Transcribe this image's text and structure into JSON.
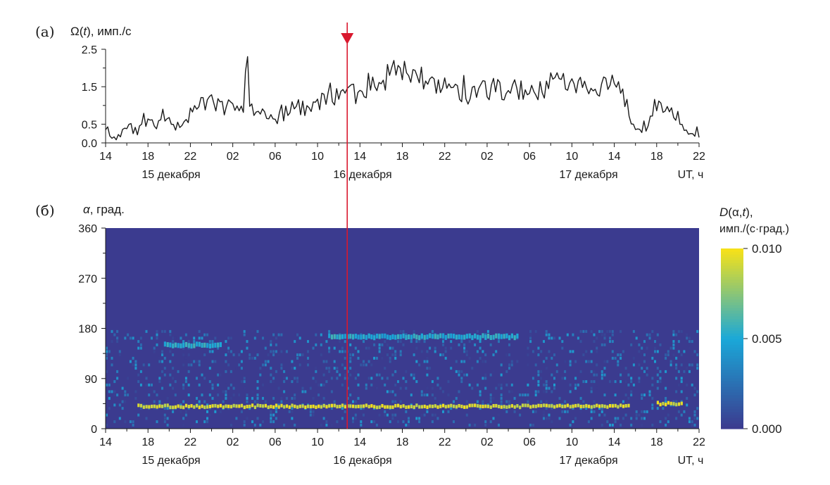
{
  "colors": {
    "line": "#1a1a1a",
    "marker": "#d9182e",
    "heat_low": "#3b3b8f",
    "heat_mid": "#1aa8d8",
    "heat_high": "#f5e11a",
    "axis": "#1a1a1a"
  },
  "time_ticks": [
    "14",
    "18",
    "22",
    "02",
    "06",
    "10",
    "14",
    "18",
    "22",
    "02",
    "06",
    "10",
    "14",
    "18",
    "22"
  ],
  "date_labels": [
    "15 декабря",
    "16 декабря",
    "17 декабря"
  ],
  "time_unit_label": "UT, ч",
  "marker": {
    "hour": 36.8,
    "icon": "arrow-down-icon"
  },
  "chart_data": [
    {
      "type": "line",
      "panel_label": "(а)",
      "ylabel": "Ω(t), имп./с",
      "ylabel_parts": [
        "Ω(",
        "t",
        "), имп./с"
      ],
      "xlabel": "UT, ч",
      "xlim": [
        14,
        70
      ],
      "ylim": [
        0,
        2.5
      ],
      "yticks": [
        "0.0",
        "0.5",
        "1.5",
        "2.5"
      ],
      "ytick_values": [
        0.0,
        0.5,
        1.5,
        2.5
      ],
      "x_hours": [
        14,
        15,
        16,
        17,
        18,
        19,
        20,
        21,
        22,
        23,
        24,
        25,
        26,
        27,
        27.3,
        27.6,
        28,
        29,
        30,
        31,
        32,
        33,
        34,
        35,
        36,
        37,
        38,
        39,
        40,
        41,
        42,
        43,
        44,
        45,
        46,
        47,
        48,
        49,
        50,
        51,
        52,
        53,
        54,
        55,
        56,
        57,
        58,
        59,
        60,
        61,
        62,
        63,
        64,
        65,
        66,
        67,
        68,
        69,
        70
      ],
      "values": [
        0.25,
        0.1,
        0.45,
        0.3,
        0.55,
        0.5,
        0.55,
        0.4,
        0.75,
        1.0,
        1.1,
        0.95,
        1.05,
        0.9,
        2.4,
        0.95,
        0.9,
        0.75,
        0.65,
        0.8,
        0.95,
        0.9,
        1.1,
        1.2,
        1.15,
        1.3,
        1.35,
        1.5,
        1.55,
        1.7,
        1.85,
        1.75,
        1.7,
        1.5,
        1.35,
        1.4,
        1.3,
        1.35,
        1.4,
        1.45,
        1.35,
        1.45,
        1.25,
        1.4,
        1.55,
        1.6,
        1.55,
        1.5,
        1.45,
        1.55,
        1.6,
        1.15,
        0.3,
        0.35,
        1.1,
        0.85,
        0.75,
        0.25,
        0.1
      ]
    },
    {
      "type": "heatmap",
      "panel_label": "(б)",
      "ylabel": "α, град.",
      "ylabel_parts": [
        "α",
        ", град."
      ],
      "xlabel": "UT, ч",
      "xlim": [
        14,
        70
      ],
      "ylim": [
        0,
        360
      ],
      "yticks": [
        "0",
        "90",
        "180",
        "270",
        "360"
      ],
      "ytick_values": [
        0,
        90,
        180,
        270,
        360
      ],
      "colorbar": {
        "title": "D(α,t),",
        "title_parts": [
          "D",
          "(α,",
          "t",
          "),"
        ],
        "subtitle": "имп./(с·град.)",
        "range": [
          0.0,
          0.01
        ],
        "ticks": [
          "0.000",
          "0.005",
          "0.010"
        ],
        "tick_values": [
          0.0,
          0.005,
          0.01
        ]
      },
      "features": [
        {
          "name": "bright band",
          "alpha": 40,
          "from_hour": 17,
          "to_hour": 63.5,
          "value": 0.01
        },
        {
          "name": "upper band",
          "alpha": 165,
          "from_hour": 35,
          "to_hour": 53,
          "value": 0.006
        },
        {
          "name": "upper patch",
          "alpha": 150,
          "from_hour": 19.5,
          "to_hour": 25,
          "value": 0.006
        },
        {
          "name": "right patch",
          "alpha": 45,
          "from_hour": 66,
          "to_hour": 68.5,
          "value": 0.01
        }
      ]
    }
  ]
}
